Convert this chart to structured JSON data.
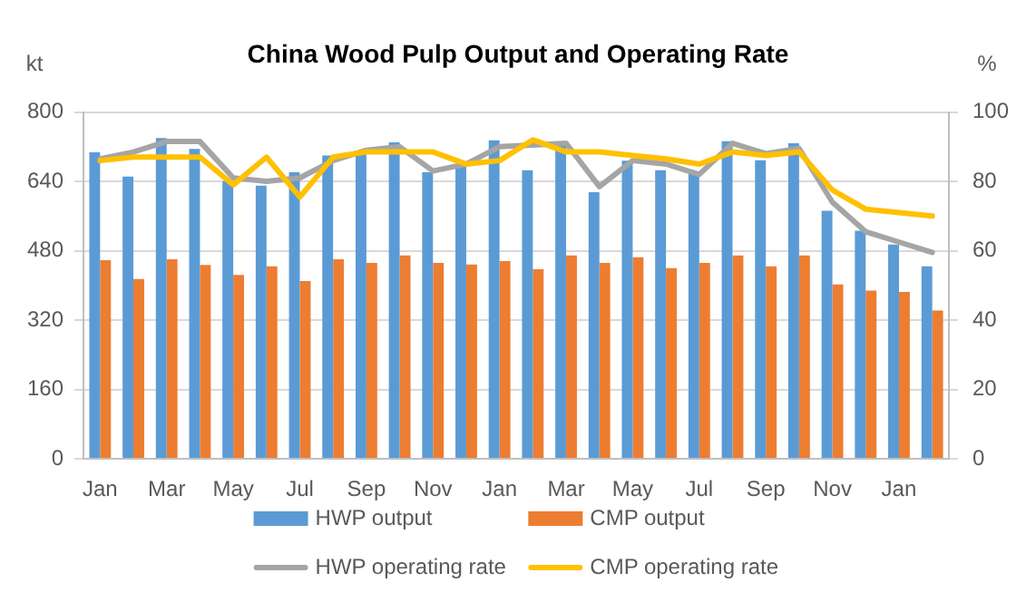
{
  "chart_data": {
    "type": "bar",
    "title": "China Wood Pulp Output and Operating Rate",
    "ylabel": "kt",
    "y2label": "%",
    "categories": [
      "Jan",
      null,
      "Mar",
      null,
      "May",
      null,
      "Jul",
      null,
      "Sep",
      null,
      "Nov",
      null,
      "Jan",
      null,
      "Mar",
      null,
      "May",
      null,
      "Jul",
      null,
      "Sep",
      null,
      "Nov",
      null,
      "Jan",
      null
    ],
    "series": [
      {
        "name": "HWP output",
        "color": "#5b9bd5",
        "values": [
          707,
          651,
          740,
          715,
          640,
          630,
          661,
          700,
          705,
          730,
          661,
          675,
          735,
          666,
          730,
          615,
          688,
          666,
          660,
          733,
          689,
          728,
          572,
          526,
          494,
          444
        ]
      },
      {
        "name": "CMP output",
        "color": "#ed7d31",
        "values": [
          458,
          415,
          460,
          447,
          424,
          444,
          410,
          460,
          452,
          469,
          452,
          448,
          456,
          437,
          469,
          452,
          465,
          440,
          452,
          469,
          444,
          469,
          402,
          388,
          385,
          342
        ]
      },
      {
        "name": "HWP operating rate",
        "type": "line",
        "axis": "y2",
        "color": "#a5a5a5",
        "values": [
          86.5,
          88.5,
          91.5,
          91.5,
          81,
          80,
          81,
          86,
          89,
          90,
          83,
          85,
          90,
          90.5,
          91,
          78.5,
          86,
          85,
          82,
          91,
          88,
          89.5,
          74,
          65.5,
          62.5,
          59.5
        ]
      },
      {
        "name": "CMP operating rate",
        "type": "line",
        "axis": "y2",
        "color": "#ffc000",
        "values": [
          86,
          87,
          87,
          87,
          79,
          87,
          75.5,
          87,
          88.5,
          88.5,
          88.5,
          85,
          86,
          92,
          88.5,
          88.5,
          87.5,
          86.5,
          85,
          88.5,
          87.5,
          88.5,
          77.5,
          72,
          71,
          70
        ]
      }
    ],
    "ylim": [
      0,
      800
    ],
    "yticks": [
      0,
      160,
      320,
      480,
      640,
      800
    ],
    "y2lim": [
      0,
      100
    ],
    "y2ticks": [
      0,
      20,
      40,
      60,
      80,
      100
    ],
    "grid": "y",
    "legend": "bottom",
    "marker": "none"
  }
}
